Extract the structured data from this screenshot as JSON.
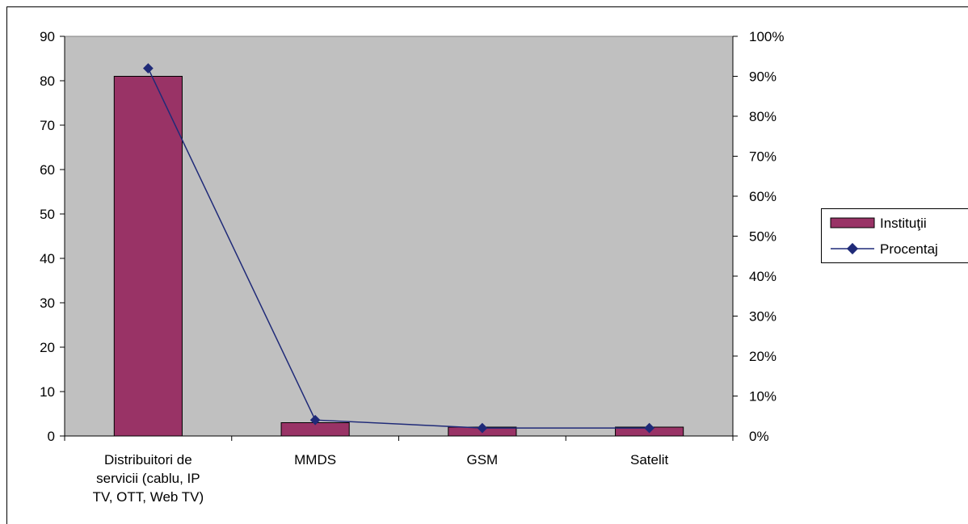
{
  "chart_data": {
    "type": "bar",
    "title": "",
    "categories": [
      [
        "Distribuitori de",
        "servicii  (cablu, IP",
        "TV, OTT, Web TV)"
      ],
      [
        "MMDS"
      ],
      [
        "GSM"
      ],
      [
        "Satelit"
      ]
    ],
    "series": [
      {
        "name": "Instituţii",
        "type": "bar",
        "axis": "left",
        "values": [
          81,
          3,
          2,
          2
        ],
        "color": "#993366"
      },
      {
        "name": "Procentaj",
        "type": "line",
        "axis": "right",
        "values": [
          0.92,
          0.04,
          0.02,
          0.02
        ],
        "color": "#1f2a78"
      }
    ],
    "y_left": {
      "min": 0,
      "max": 90,
      "step": 10,
      "ticks": [
        "0",
        "10",
        "20",
        "30",
        "40",
        "50",
        "60",
        "70",
        "80",
        "90"
      ]
    },
    "y_right": {
      "min": 0,
      "max": 1,
      "step": 0.1,
      "ticks": [
        "0%",
        "10%",
        "20%",
        "30%",
        "40%",
        "50%",
        "60%",
        "70%",
        "80%",
        "90%",
        "100%"
      ]
    },
    "plot_background": "#c0c0c0",
    "grid": false,
    "legend": {
      "position": "right"
    }
  }
}
